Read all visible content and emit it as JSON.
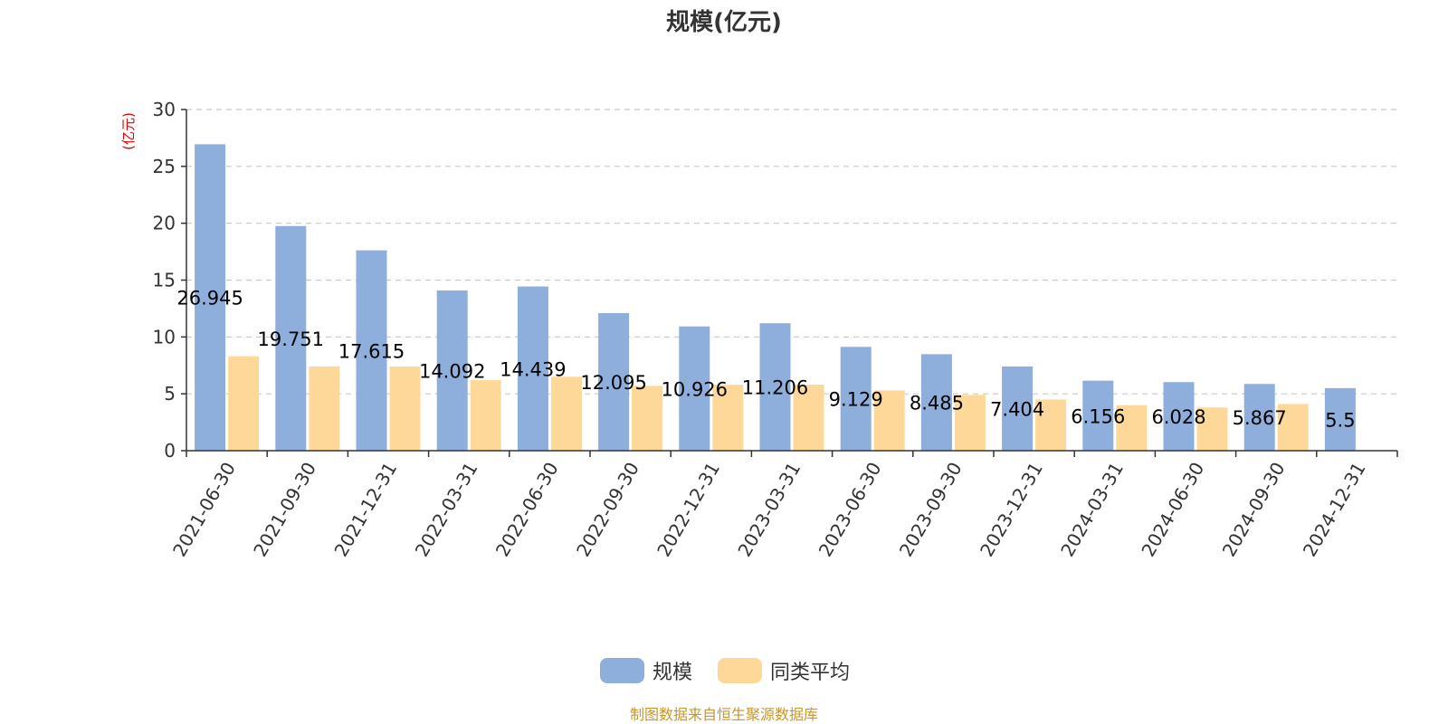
{
  "chart_data": {
    "type": "bar",
    "title": "规模(亿元)",
    "ylabel": "(亿元)",
    "xlabel": "",
    "ylim": [
      0,
      30
    ],
    "yticks": [
      0,
      5,
      10,
      15,
      20,
      25,
      30
    ],
    "grid": true,
    "legend_position": "bottom-center",
    "categories": [
      "2021-06-30",
      "2021-09-30",
      "2021-12-31",
      "2022-03-31",
      "2022-06-30",
      "2022-09-30",
      "2022-12-31",
      "2023-03-31",
      "2023-06-30",
      "2023-09-30",
      "2023-12-31",
      "2024-03-31",
      "2024-06-30",
      "2024-09-30",
      "2024-12-31"
    ],
    "series": [
      {
        "name": "规模",
        "color": "#8eaedb",
        "values": [
          26.945,
          19.751,
          17.615,
          14.092,
          14.439,
          12.095,
          10.926,
          11.206,
          9.129,
          8.485,
          7.404,
          6.156,
          6.028,
          5.867,
          5.5
        ],
        "labels": [
          "26.945",
          "19.751",
          "17.615",
          "14.092",
          "14.439",
          "12.095",
          "10.926",
          "11.206",
          "9.129",
          "8.485",
          "7.404",
          "6.156",
          "6.028",
          "5.867",
          "5.5"
        ]
      },
      {
        "name": "同类平均",
        "color": "#fdd898",
        "values": [
          8.3,
          7.4,
          7.4,
          6.2,
          6.5,
          5.7,
          5.8,
          5.8,
          5.3,
          4.9,
          4.5,
          4.0,
          3.8,
          4.1,
          null
        ]
      }
    ],
    "source": "制图数据来自恒生聚源数据库"
  }
}
